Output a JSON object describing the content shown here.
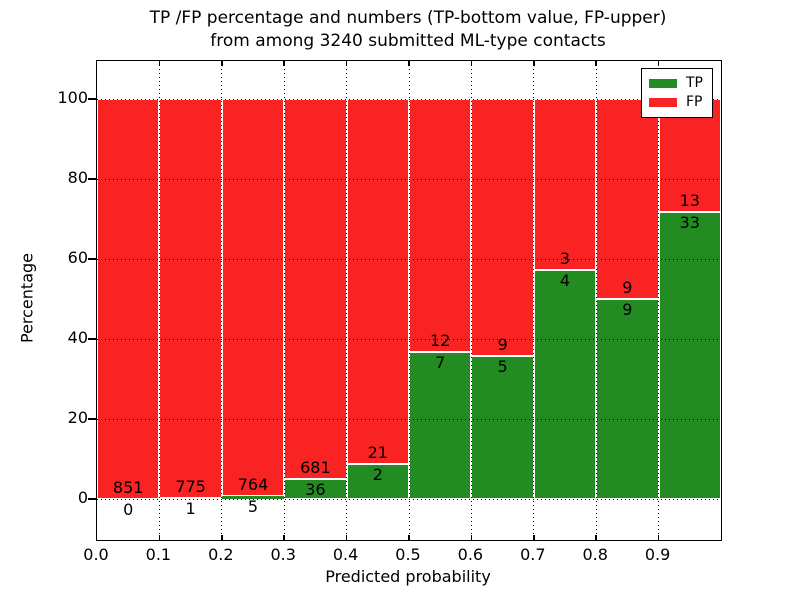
{
  "figure": {
    "title_line1": "TP /FP percentage and numbers (TP-bottom value, FP-upper)",
    "title_line2": "from among 3240 submitted ML-type contacts",
    "xlabel": "Predicted probability",
    "ylabel": "Percentage"
  },
  "legend": {
    "position": "upper-right",
    "entries": [
      {
        "label": "TP",
        "color": "#228b22"
      },
      {
        "label": "FP",
        "color": "#fa2323"
      }
    ]
  },
  "chart_data": {
    "type": "bar",
    "variant": "stacked-100-percent",
    "title": "TP /FP percentage and numbers (TP-bottom value, FP-upper) from among 3240 submitted ML-type contacts",
    "xlabel": "Predicted probability",
    "ylabel": "Percentage",
    "total_submitted": 3240,
    "xlim": [
      0.0,
      1.0
    ],
    "ylim": [
      -10.25,
      109.5
    ],
    "x_tick_labels": [
      "0.0",
      "0.1",
      "0.2",
      "0.3",
      "0.4",
      "0.5",
      "0.6",
      "0.7",
      "0.8",
      "0.9"
    ],
    "y_tick_values": [
      0,
      20,
      40,
      60,
      80,
      100
    ],
    "grid": {
      "style": "dotted",
      "color": "#000000"
    },
    "bar_edge_color": "#ffffff",
    "legend_position": "upper-right",
    "categories": [
      "0.0-0.1",
      "0.1-0.2",
      "0.2-0.3",
      "0.3-0.4",
      "0.4-0.5",
      "0.5-0.6",
      "0.6-0.7",
      "0.7-0.8",
      "0.8-0.9",
      "0.9-1.0"
    ],
    "series": [
      {
        "name": "TP",
        "color": "#228b22",
        "counts": [
          0,
          1,
          5,
          36,
          2,
          7,
          5,
          4,
          9,
          33
        ]
      },
      {
        "name": "FP",
        "color": "#fa2323",
        "counts": [
          851,
          775,
          764,
          681,
          21,
          12,
          9,
          3,
          9,
          13
        ]
      }
    ]
  }
}
